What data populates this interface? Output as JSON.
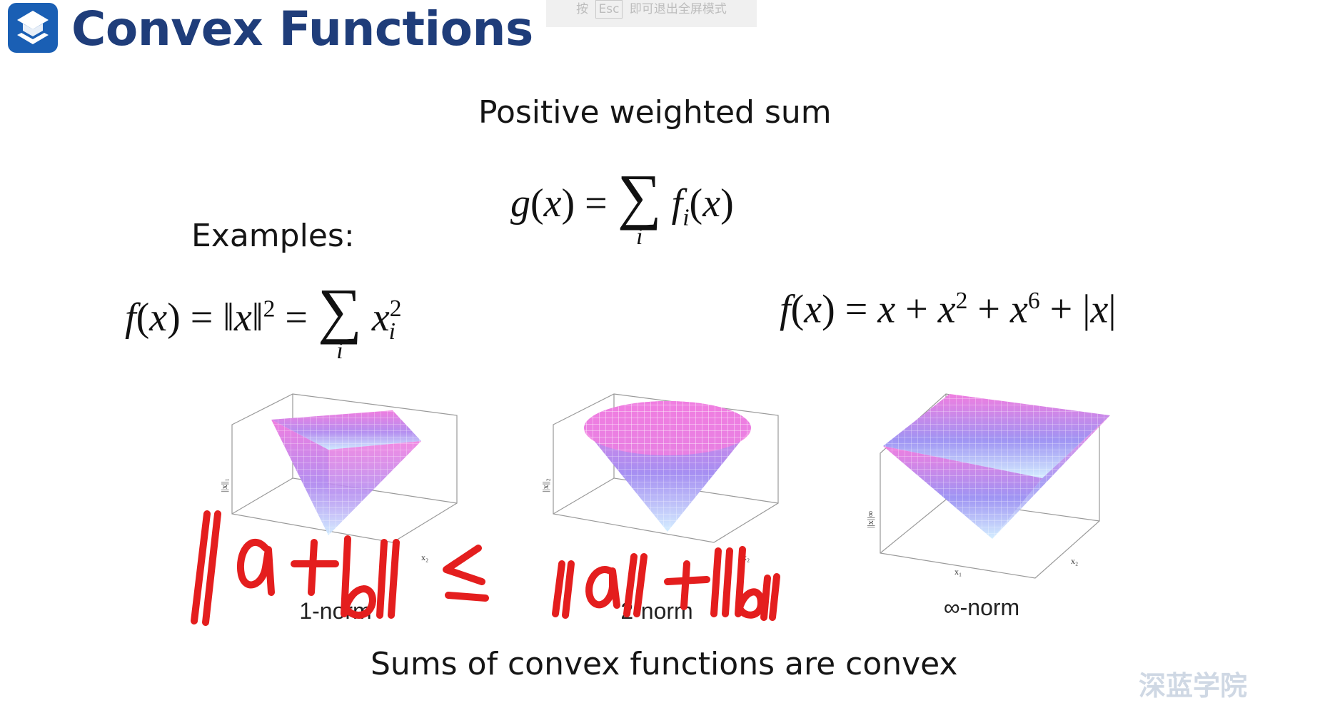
{
  "header": {
    "title": "Convex Functions",
    "esc_hint": {
      "prefix": "按",
      "key": "Esc",
      "suffix": "即可退出全屏模式"
    }
  },
  "slide": {
    "subtitle": "Positive weighted sum",
    "examples_label": "Examples:",
    "conclusion": "Sums of convex functions are convex"
  },
  "plots": [
    {
      "label": "1-norm",
      "axis_z": "||x||₁",
      "axis_x1": "x₁",
      "axis_x2": "x₂",
      "shape": "inverted-pyramid-diamond"
    },
    {
      "label": "2-norm",
      "axis_z": "||x||₂",
      "axis_x1": "x₁",
      "axis_x2": "x₂",
      "shape": "cone"
    },
    {
      "label": "∞-norm",
      "axis_z": "||x||∞",
      "axis_x1": "x₁",
      "axis_x2": "x₂",
      "shape": "inverted-pyramid-square"
    }
  ],
  "handwriting": {
    "text": "||a+b|| ≤ ||a|| + ||b||",
    "color": "#e41e1e"
  },
  "colors": {
    "title": "#1f3d7a",
    "logo": "#1a5fb4",
    "surface_top": "#f07ee0",
    "surface_bottom": "#6cc6f5"
  },
  "watermark": "深蓝学院"
}
